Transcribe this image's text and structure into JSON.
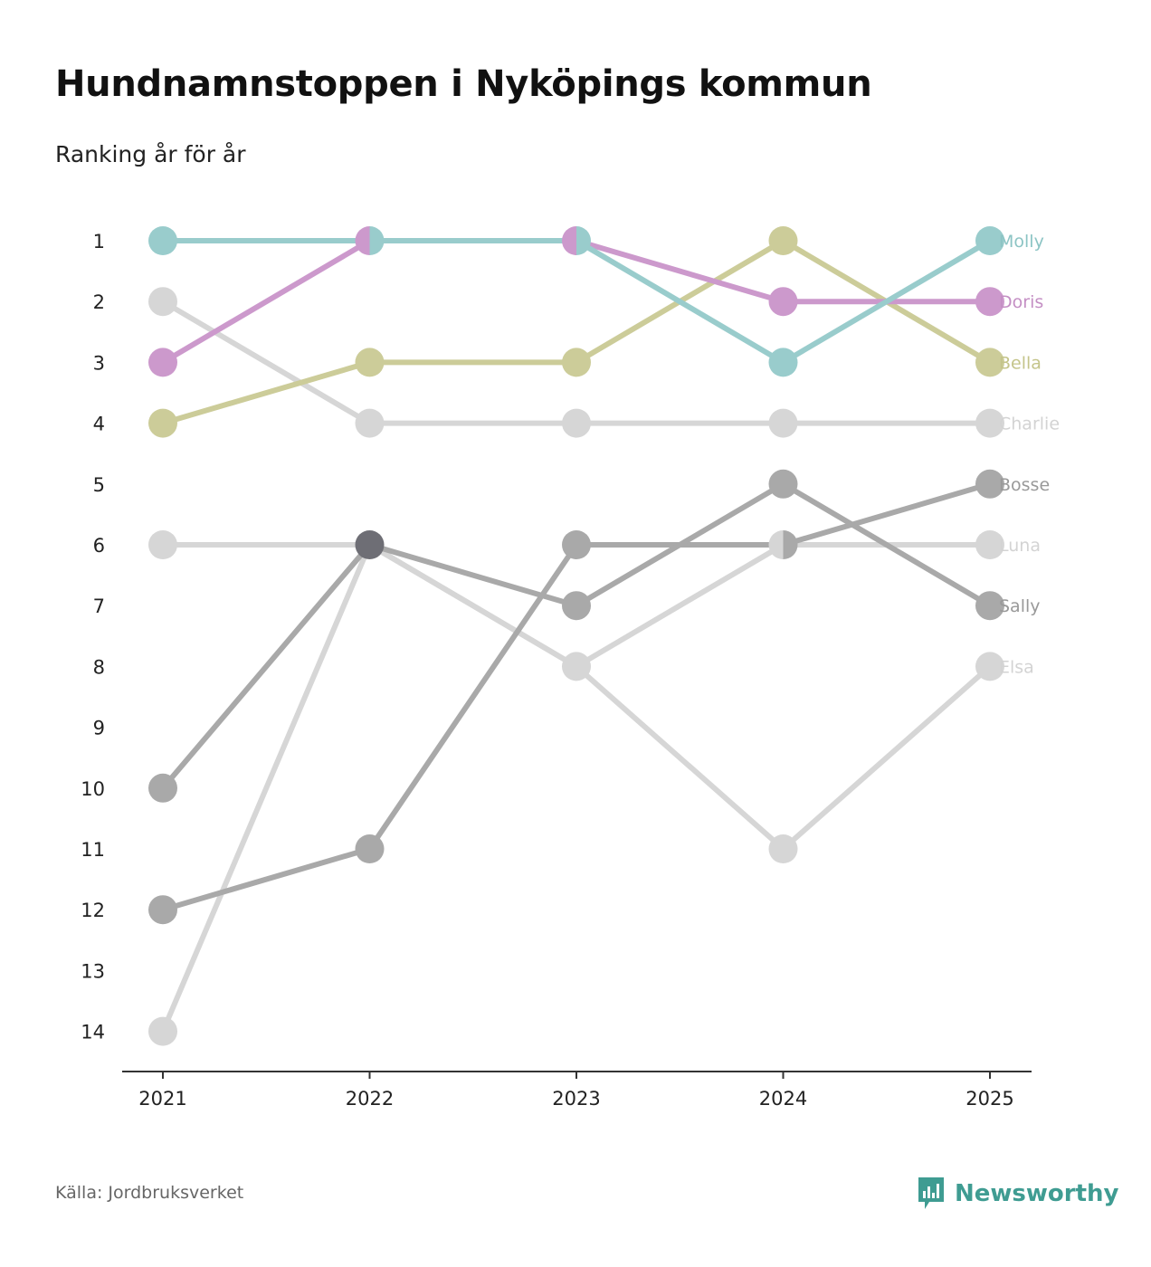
{
  "header": {
    "title": "Hundnamnstoppen i Nyköpings kommun",
    "subtitle": "Ranking år för år"
  },
  "footer": {
    "source": "Källa: Jordbruksverket",
    "brand": "Newsworthy",
    "brand_icon": "bar-chart-pin-icon"
  },
  "colors": {
    "axis": "#333333",
    "tick_text": "#222222"
  },
  "chart_data": {
    "type": "line",
    "variant": "bump",
    "x": [
      "2021",
      "2022",
      "2023",
      "2024",
      "2025"
    ],
    "ylabel": "Ranking",
    "ylim": [
      14,
      1
    ],
    "yticks": [
      1,
      2,
      3,
      4,
      5,
      6,
      7,
      8,
      9,
      10,
      11,
      12,
      13,
      14
    ],
    "series": [
      {
        "name": "Charlie",
        "values": [
          2,
          4,
          4,
          4,
          4
        ],
        "color": "#d6d6d6",
        "label_color": "#d3d3d3"
      },
      {
        "name": "Luna",
        "values": [
          6,
          6,
          8,
          6,
          6
        ],
        "color": "#d6d6d6",
        "label_color": "#d3d3d3"
      },
      {
        "name": "Elsa",
        "values": [
          14,
          6,
          8,
          11,
          8
        ],
        "color": "#d6d6d6",
        "label_color": "#d3d3d3"
      },
      {
        "name": "Bosse",
        "values": [
          12,
          11,
          6,
          6,
          5
        ],
        "color": "#a9a9a9",
        "label_color": "#999999"
      },
      {
        "name": "Sally",
        "values": [
          10,
          6,
          7,
          5,
          7
        ],
        "color": "#a9a9a9",
        "label_color": "#999999"
      },
      {
        "name": "Bella",
        "values": [
          4,
          3,
          3,
          1,
          3
        ],
        "color": "#cccc99",
        "label_color": "#c4c48a"
      },
      {
        "name": "Doris",
        "values": [
          3,
          1,
          1,
          2,
          2
        ],
        "color": "#cc99cc",
        "label_color": "#c48fc4"
      },
      {
        "name": "Molly",
        "values": [
          1,
          1,
          1,
          3,
          1
        ],
        "color": "#99cccc",
        "label_color": "#8cc4c4"
      }
    ]
  }
}
